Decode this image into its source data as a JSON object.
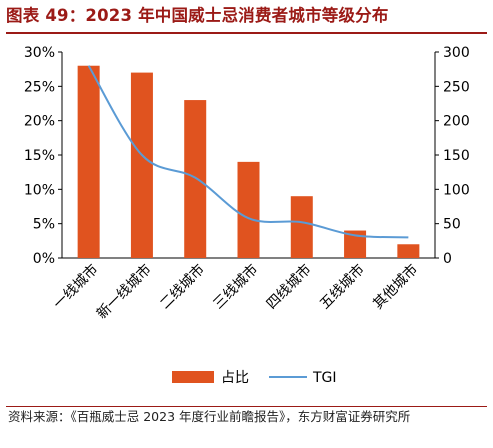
{
  "title": "图表 49：2023 年中国威士忌消费者城市等级分布",
  "source": "资料来源：《百瓶威士忌 2023 年度行业前瞻报告》，东方财富证券研究所",
  "colors": {
    "bar": "#e0531f",
    "line": "#5b9bd5",
    "title": "#9b1a16",
    "axis": "#000000"
  },
  "chart_data": {
    "type": "bar",
    "categories": [
      "一线城市",
      "新一线城市",
      "二线城市",
      "三线城市",
      "四线城市",
      "五线城市",
      "其他城市"
    ],
    "series": [
      {
        "name": "占比",
        "type": "bar",
        "axis": "left",
        "values": [
          28,
          27,
          23,
          14,
          9,
          4,
          2
        ]
      },
      {
        "name": "TGI",
        "type": "line",
        "axis": "right",
        "values": [
          280,
          150,
          117,
          58,
          52,
          33,
          30
        ]
      }
    ],
    "y_left": {
      "ylim": [
        0,
        30
      ],
      "ticks": [
        "0%",
        "5%",
        "10%",
        "15%",
        "20%",
        "25%",
        "30%"
      ]
    },
    "y_right": {
      "ylim": [
        0,
        300
      ],
      "ticks": [
        "0",
        "50",
        "100",
        "150",
        "200",
        "250",
        "300"
      ]
    },
    "grid": false,
    "legend_position": "bottom"
  }
}
